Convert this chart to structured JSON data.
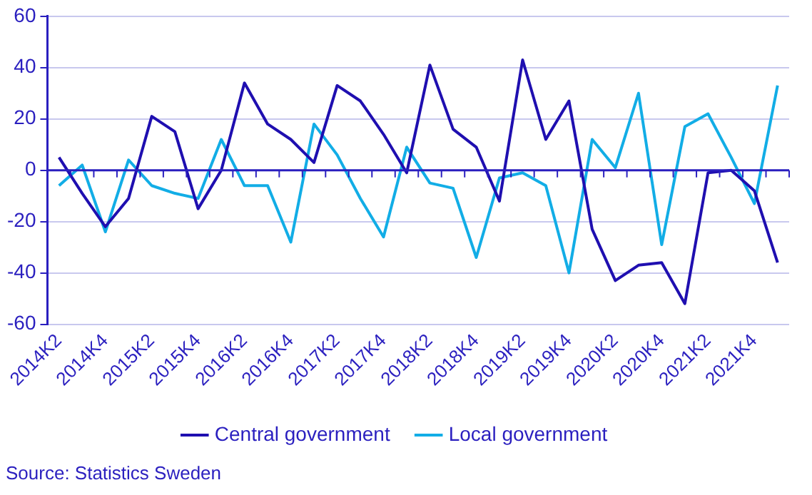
{
  "chart_data": {
    "type": "line",
    "categories": [
      "2014K2",
      null,
      "2014K4",
      null,
      "2015K2",
      null,
      "2015K4",
      null,
      "2016K2",
      null,
      "2016K4",
      null,
      "2017K2",
      null,
      "2017K4",
      null,
      "2018K2",
      null,
      "2018K4",
      null,
      "2019K2",
      null,
      "2019K4",
      null,
      "2020K2",
      null,
      "2020K4",
      null,
      "2021K2",
      null,
      "2021K4",
      null
    ],
    "series": [
      {
        "name": "Central government",
        "color": "#1f0fb0",
        "values": [
          5,
          -9,
          -22,
          -11,
          21,
          15,
          -15,
          0,
          34,
          18,
          12,
          3,
          33,
          27,
          14,
          -1,
          41,
          16,
          9,
          -12,
          43,
          12,
          27,
          -23,
          -43,
          -37,
          -36,
          -52,
          -1,
          0,
          -8,
          -36
        ]
      },
      {
        "name": "Local government",
        "color": "#12ade6",
        "values": [
          -6,
          2,
          -24,
          4,
          -6,
          -9,
          -11,
          12,
          -6,
          -6,
          -28,
          18,
          6,
          -11,
          -26,
          9,
          -5,
          -7,
          -34,
          -3,
          -1,
          -6,
          -40,
          12,
          1,
          30,
          -29,
          17,
          22,
          5,
          -13,
          33
        ]
      }
    ],
    "ylim": [
      -60,
      60
    ],
    "yticks": [
      -60,
      -40,
      -20,
      0,
      20,
      40,
      60
    ],
    "ref_lines": [
      {
        "axis": "y",
        "value": 0,
        "color": "#2a1fbf"
      }
    ],
    "grid": "y",
    "legend": "bottom",
    "marker": "none",
    "line_style": "solid",
    "annotations": [
      "Source: Statistics Sweden"
    ]
  }
}
